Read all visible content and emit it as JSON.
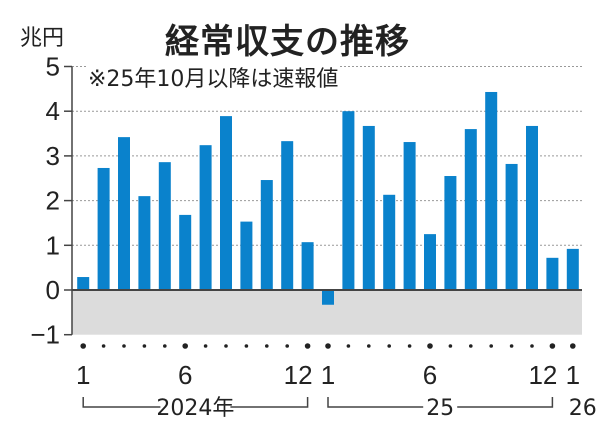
{
  "header": {
    "title": "経常収支の推移",
    "unit": "兆円",
    "note": "※25年10月以降は速報値"
  },
  "colors": {
    "bar": "#0a82cc",
    "negative_area": "#dcdcdc",
    "grid": "#999999",
    "axis": "#444444"
  },
  "x_axis": {
    "month_labels": [
      {
        "index": 0,
        "text": "1"
      },
      {
        "index": 5,
        "text": "6"
      },
      {
        "index": 11,
        "text": "12"
      },
      {
        "index": 12,
        "text": "1"
      },
      {
        "index": 17,
        "text": "6"
      },
      {
        "index": 23,
        "text": "12"
      },
      {
        "index": 24,
        "text": "1"
      }
    ],
    "year_labels": [
      {
        "text": "2024年",
        "from": 0,
        "to": 11
      },
      {
        "text": "25",
        "from": 12,
        "to": 23
      },
      {
        "text": "26",
        "from": 24,
        "to": 24
      }
    ]
  },
  "chart_data": {
    "type": "bar",
    "title": "経常収支の推移",
    "subtitle": "※25年10月以降は速報値",
    "xlabel": "",
    "ylabel": "兆円",
    "ylim": [
      -1,
      5
    ],
    "yticks": [
      -1,
      0,
      1,
      2,
      3,
      4,
      5
    ],
    "grid": true,
    "categories": [
      "2024-01",
      "2024-02",
      "2024-03",
      "2024-04",
      "2024-05",
      "2024-06",
      "2024-07",
      "2024-08",
      "2024-09",
      "2024-10",
      "2024-11",
      "2024-12",
      "2025-01",
      "2025-02",
      "2025-03",
      "2025-04",
      "2025-05",
      "2025-06",
      "2025-07",
      "2025-08",
      "2025-09",
      "2025-10",
      "2025-11",
      "2025-12",
      "2026-01"
    ],
    "series": [
      {
        "name": "経常収支",
        "values": [
          0.29,
          2.73,
          3.42,
          2.1,
          2.86,
          1.68,
          3.24,
          3.89,
          1.53,
          2.46,
          3.33,
          1.07,
          -0.33,
          4.0,
          3.67,
          2.13,
          3.31,
          1.25,
          2.55,
          3.6,
          4.43,
          2.82,
          3.67,
          0.72,
          0.92
        ]
      }
    ]
  }
}
